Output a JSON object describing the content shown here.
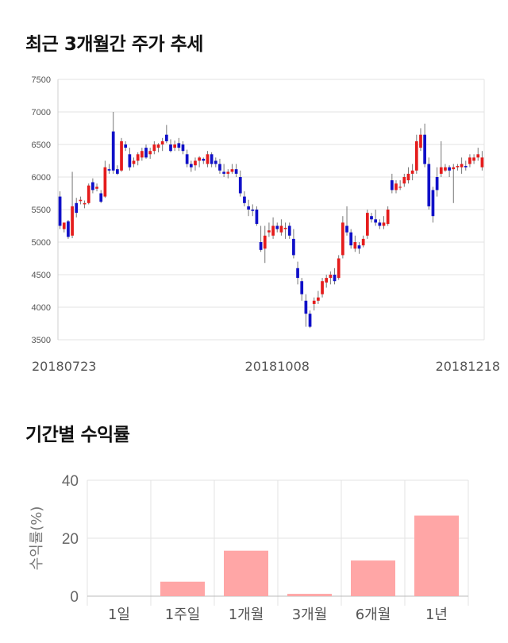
{
  "price_section": {
    "title": "최근 3개월간 주가 추세"
  },
  "returns_section": {
    "title": "기간별 수익률"
  },
  "colors": {
    "up": "#e51c1c",
    "down": "#1010c8",
    "wick": "#777777",
    "bar": "#ffa6a6",
    "grid": "#e3e3e3"
  },
  "chart_data": [
    {
      "type": "candlestick",
      "ylim": [
        3500,
        7500
      ],
      "yticks": [
        3500,
        4000,
        4500,
        5000,
        5500,
        6000,
        6500,
        7000,
        7500
      ],
      "xtick_labels": [
        {
          "index": 0,
          "label": "20180723"
        },
        {
          "index": 53,
          "label": "20181008"
        },
        {
          "index": 103,
          "label": "20181218"
        }
      ],
      "grid": true,
      "candles": [
        [
          5700,
          5780,
          5200,
          5250
        ],
        [
          5200,
          5260,
          5150,
          5300
        ],
        [
          5320,
          5340,
          5050,
          5080
        ],
        [
          5100,
          6080,
          5060,
          5550
        ],
        [
          5600,
          5680,
          5380,
          5450
        ],
        [
          5630,
          5700,
          5580,
          5650
        ],
        [
          5580,
          5640,
          5520,
          5600
        ],
        [
          5600,
          5900,
          5580,
          5870
        ],
        [
          5920,
          5980,
          5750,
          5800
        ],
        [
          5820,
          5900,
          5780,
          5850
        ],
        [
          5750,
          5800,
          5600,
          5620
        ],
        [
          5700,
          6250,
          5680,
          6150
        ],
        [
          6120,
          6200,
          6050,
          6100
        ],
        [
          6700,
          7000,
          6050,
          6100
        ],
        [
          6120,
          6180,
          6030,
          6050
        ],
        [
          6100,
          6600,
          6080,
          6550
        ],
        [
          6500,
          6550,
          6400,
          6450
        ],
        [
          6350,
          6450,
          6100,
          6150
        ],
        [
          6200,
          6300,
          6150,
          6250
        ],
        [
          6250,
          6380,
          6180,
          6350
        ],
        [
          6300,
          6450,
          6250,
          6400
        ],
        [
          6450,
          6500,
          6280,
          6300
        ],
        [
          6350,
          6450,
          6280,
          6400
        ],
        [
          6400,
          6550,
          6350,
          6500
        ],
        [
          6450,
          6520,
          6380,
          6500
        ],
        [
          6500,
          6600,
          6400,
          6550
        ],
        [
          6650,
          6800,
          6520,
          6550
        ],
        [
          6500,
          6580,
          6380,
          6400
        ],
        [
          6450,
          6560,
          6400,
          6500
        ],
        [
          6520,
          6600,
          6400,
          6450
        ],
        [
          6500,
          6550,
          6350,
          6400
        ],
        [
          6350,
          6420,
          6150,
          6200
        ],
        [
          6200,
          6250,
          6080,
          6150
        ],
        [
          6180,
          6300,
          6100,
          6250
        ],
        [
          6250,
          6320,
          6150,
          6300
        ],
        [
          6280,
          6300,
          6200,
          6250
        ],
        [
          6200,
          6400,
          6150,
          6350
        ],
        [
          6350,
          6380,
          6150,
          6200
        ],
        [
          6250,
          6300,
          6150,
          6200
        ],
        [
          6200,
          6280,
          6050,
          6100
        ],
        [
          6080,
          6200,
          6000,
          6050
        ],
        [
          6050,
          6120,
          5980,
          6080
        ],
        [
          6080,
          6200,
          6050,
          6120
        ],
        [
          6120,
          6200,
          6000,
          6050
        ],
        [
          6000,
          6100,
          5700,
          5750
        ],
        [
          5700,
          5780,
          5550,
          5600
        ],
        [
          5550,
          5650,
          5400,
          5500
        ],
        [
          5500,
          5580,
          5400,
          5480
        ],
        [
          5500,
          5550,
          5250,
          5280
        ],
        [
          5000,
          5250,
          4850,
          4880
        ],
        [
          4900,
          5250,
          4680,
          5100
        ],
        [
          5150,
          5300,
          5080,
          5180
        ],
        [
          5100,
          5380,
          5050,
          5250
        ],
        [
          5250,
          5300,
          5150,
          5200
        ],
        [
          5150,
          5350,
          5100,
          5250
        ],
        [
          5200,
          5300,
          5050,
          5220
        ],
        [
          5250,
          5300,
          5050,
          5100
        ],
        [
          5050,
          5200,
          4750,
          4800
        ],
        [
          4600,
          4700,
          4350,
          4450
        ],
        [
          4400,
          4450,
          4100,
          4200
        ],
        [
          4100,
          4200,
          3700,
          3900
        ],
        [
          3900,
          3950,
          3680,
          3700
        ],
        [
          4050,
          4150,
          3950,
          4100
        ],
        [
          4100,
          4250,
          4050,
          4150
        ],
        [
          4200,
          4450,
          4150,
          4400
        ],
        [
          4380,
          4500,
          4300,
          4450
        ],
        [
          4450,
          4550,
          4350,
          4500
        ],
        [
          4500,
          4600,
          4350,
          4400
        ],
        [
          4450,
          4800,
          4420,
          4750
        ],
        [
          4800,
          5400,
          4750,
          5300
        ],
        [
          5250,
          5550,
          5100,
          5150
        ],
        [
          5150,
          5200,
          4900,
          4950
        ],
        [
          4900,
          5100,
          4850,
          5000
        ],
        [
          4950,
          5000,
          4820,
          4900
        ],
        [
          4950,
          5100,
          4920,
          5050
        ],
        [
          5100,
          5500,
          5050,
          5450
        ],
        [
          5400,
          5450,
          5300,
          5350
        ],
        [
          5350,
          5500,
          5250,
          5300
        ],
        [
          5300,
          5350,
          5200,
          5250
        ],
        [
          5250,
          5400,
          5200,
          5300
        ],
        [
          5280,
          5550,
          5250,
          5500
        ],
        [
          5950,
          6050,
          5750,
          5800
        ],
        [
          5800,
          5950,
          5750,
          5900
        ],
        [
          5850,
          5950,
          5800,
          5850
        ],
        [
          5900,
          6050,
          5850,
          6000
        ],
        [
          5950,
          6150,
          5900,
          6050
        ],
        [
          6050,
          6200,
          5950,
          6100
        ],
        [
          6100,
          6650,
          6050,
          6550
        ],
        [
          6450,
          6750,
          6400,
          6650
        ],
        [
          6650,
          6820,
          6150,
          6200
        ],
        [
          6200,
          6300,
          5500,
          5550
        ],
        [
          5800,
          5850,
          5300,
          5400
        ],
        [
          6000,
          6150,
          5700,
          5800
        ],
        [
          6050,
          6550,
          6000,
          6150
        ],
        [
          6100,
          6200,
          6080,
          6150
        ],
        [
          6150,
          6180,
          6000,
          6100
        ],
        [
          6120,
          6200,
          5600,
          6150
        ],
        [
          6150,
          6200,
          6100,
          6170
        ],
        [
          6150,
          6300,
          6050,
          6200
        ],
        [
          6170,
          6250,
          6100,
          6150
        ],
        [
          6200,
          6350,
          6150,
          6300
        ],
        [
          6250,
          6350,
          6200,
          6300
        ],
        [
          6300,
          6450,
          6250,
          6350
        ],
        [
          6150,
          6400,
          6100,
          6300
        ]
      ]
    },
    {
      "type": "bar",
      "ylabel": "수익률(%)",
      "ylim": [
        0,
        40
      ],
      "yticks": [
        0,
        20,
        40
      ],
      "grid": true,
      "categories": [
        "1일",
        "1주일",
        "1개월",
        "3개월",
        "6개월",
        "1년"
      ],
      "values": [
        0,
        5,
        15.7,
        0.8,
        12.3,
        27.8
      ]
    }
  ]
}
